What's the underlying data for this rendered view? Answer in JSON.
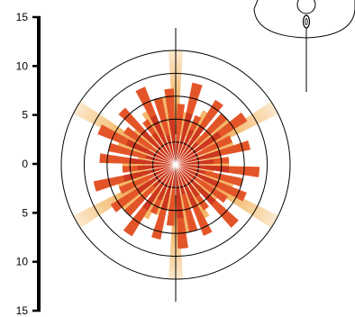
{
  "chart_data": {
    "type": "polar-bar",
    "axis": {
      "tick_labels": [
        "15",
        "10",
        "5",
        "0",
        "5",
        "10",
        "15"
      ],
      "ticks": [
        15,
        10,
        5,
        0,
        -5,
        -10,
        -15
      ],
      "ylim": [
        -15,
        15
      ]
    },
    "grid": {
      "rings": [
        3,
        6,
        9,
        12,
        15
      ],
      "line_color": "#000000"
    },
    "directions": 36,
    "series": [
      {
        "color": "#f4b86a",
        "outer_color": "#fbe9cf",
        "values": [
          15,
          7,
          6,
          8,
          5,
          9,
          15,
          8,
          6,
          7,
          5,
          8,
          15,
          7,
          5,
          8,
          6,
          9,
          15,
          6,
          7,
          8,
          5,
          9,
          15,
          8,
          6,
          7,
          5,
          8,
          15,
          7,
          5,
          8,
          6,
          9
        ]
      },
      {
        "color": "#e35529",
        "values": [
          8,
          11,
          7,
          10,
          9,
          11,
          8,
          10,
          7,
          11,
          9,
          10,
          8,
          11,
          7,
          10,
          9,
          11,
          8,
          10,
          7,
          11,
          9,
          10,
          8,
          11,
          7,
          10,
          9,
          11,
          8,
          10,
          7,
          11,
          9,
          10
        ]
      },
      {
        "color": "#c8321f",
        "values": [
          3,
          7,
          5,
          6,
          4,
          7,
          3,
          6,
          5,
          7,
          4,
          6,
          3,
          7,
          5,
          6,
          4,
          7,
          3,
          6,
          5,
          7,
          4,
          6,
          3,
          7,
          5,
          6,
          4,
          7,
          3,
          6,
          5,
          7,
          4,
          6
        ]
      }
    ]
  }
}
